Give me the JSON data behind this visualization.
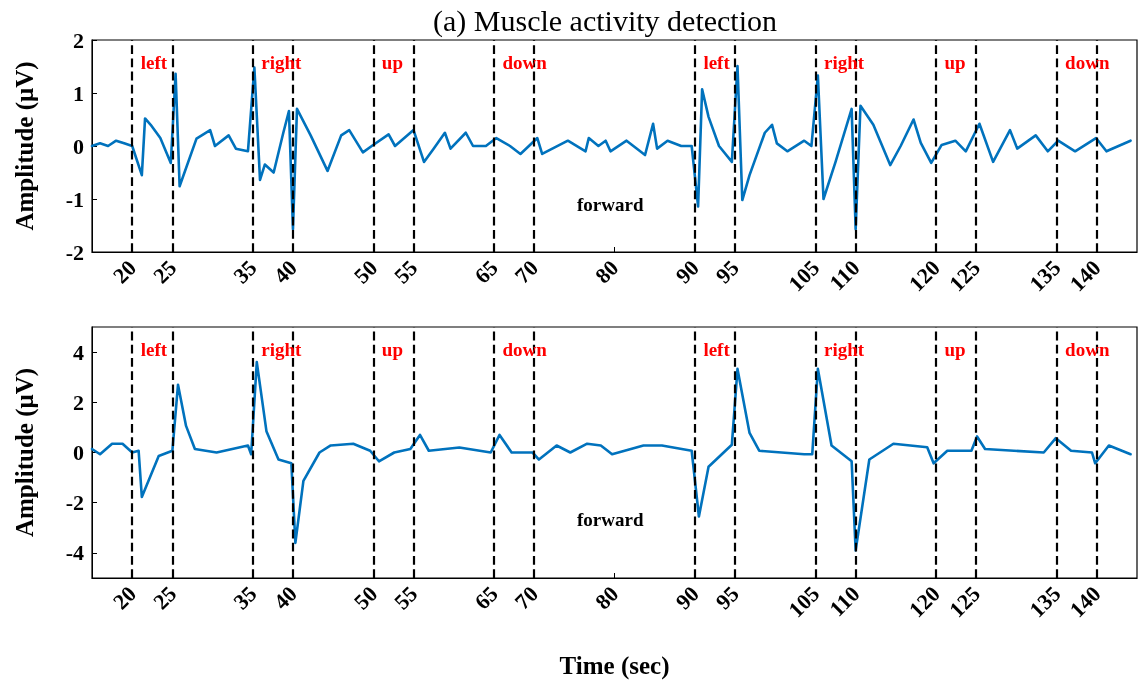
{
  "chart_data": [
    {
      "type": "line",
      "title": "(a) Muscle activity detection",
      "ylabel": "Amplitude (μV)",
      "xlim": [
        15,
        145
      ],
      "xticks": [
        20,
        25,
        35,
        40,
        50,
        55,
        65,
        70,
        80,
        90,
        95,
        105,
        110,
        120,
        125,
        135,
        140
      ],
      "ylim": [
        -2,
        2
      ],
      "yticks": [
        -2,
        -1,
        0,
        1,
        2
      ],
      "grid": false,
      "marker": "none",
      "line_style": "solid",
      "series": [
        {
          "color": "#0072bd",
          "x": [
            15,
            16,
            17,
            18,
            19,
            20,
            21.2,
            21.6,
            22.3,
            23.5,
            24.8,
            25.4,
            25.9,
            28,
            29.7,
            30.3,
            32,
            32.9,
            34.4,
            35.2,
            35.9,
            36.5,
            37.6,
            38.8,
            39.5,
            40,
            40.5,
            42.2,
            44.3,
            46,
            47,
            48.7,
            49.8,
            51.9,
            52.7,
            55,
            56.3,
            57.5,
            58.9,
            59.6,
            61.5,
            62.4,
            64,
            65.3,
            67,
            68.3,
            70.4,
            71,
            74.2,
            76.4,
            76.8,
            78,
            78.9,
            79.5,
            81.5,
            83.8,
            84.8,
            85.3,
            86.6,
            88.3,
            89.6,
            90.4,
            90.9,
            91.7,
            93,
            94.6,
            95.3,
            95.9,
            96.8,
            98.7,
            99.6,
            100.2,
            101.5,
            103.6,
            104.5,
            105.3,
            106,
            107.5,
            109.5,
            110,
            110.6,
            112.2,
            114.3,
            115.6,
            117.2,
            118.1,
            119.4,
            120.7,
            122.4,
            123.7,
            125.4,
            127.1,
            129.2,
            130.1,
            132.4,
            133.9,
            135.2,
            137.3,
            139.9,
            141.2,
            144.2
          ],
          "values": [
            0,
            0.05,
            0,
            0.1,
            0.05,
            0,
            -0.55,
            0.52,
            0.4,
            0.15,
            -0.32,
            1.36,
            -0.76,
            0.14,
            0.3,
            0,
            0.2,
            -0.05,
            -0.1,
            1.48,
            -0.64,
            -0.35,
            -0.5,
            0.25,
            0.66,
            -1.57,
            0.7,
            0.2,
            -0.47,
            0.2,
            0.3,
            -0.12,
            0,
            0.22,
            0,
            0.3,
            -0.3,
            -0.05,
            0.25,
            -0.05,
            0.25,
            0,
            0,
            0.15,
            0,
            -0.15,
            0.15,
            -0.15,
            0.1,
            -0.1,
            0.15,
            0,
            0.1,
            -0.1,
            0.1,
            -0.17,
            0.42,
            -0.05,
            0.1,
            0,
            0,
            -1.14,
            1.07,
            0.55,
            0,
            -0.3,
            1.51,
            -1.02,
            -0.55,
            0.25,
            0.4,
            0.05,
            -0.1,
            0.1,
            0,
            1.33,
            -1,
            -0.3,
            0.7,
            -1.57,
            0.76,
            0.4,
            -0.36,
            0,
            0.5,
            0.06,
            -0.32,
            0.02,
            0.1,
            -0.1,
            0.42,
            -0.3,
            0.3,
            -0.05,
            0.2,
            -0.1,
            0.1,
            -0.1,
            0.15,
            -0.1,
            0.1
          ]
        }
      ],
      "ref_lines": [
        {
          "axis": "x",
          "value": 20,
          "color": "#000000",
          "line_style": "dashed",
          "label": "left"
        },
        {
          "axis": "x",
          "value": 25,
          "color": "#000000",
          "line_style": "dashed"
        },
        {
          "axis": "x",
          "value": 35,
          "color": "#000000",
          "line_style": "dashed",
          "label": "right"
        },
        {
          "axis": "x",
          "value": 40,
          "color": "#000000",
          "line_style": "dashed"
        },
        {
          "axis": "x",
          "value": 50,
          "color": "#000000",
          "line_style": "dashed",
          "label": "up"
        },
        {
          "axis": "x",
          "value": 55,
          "color": "#000000",
          "line_style": "dashed"
        },
        {
          "axis": "x",
          "value": 65,
          "color": "#000000",
          "line_style": "dashed",
          "label": "down"
        },
        {
          "axis": "x",
          "value": 70,
          "color": "#000000",
          "line_style": "dashed"
        },
        {
          "axis": "x",
          "value": 90,
          "color": "#000000",
          "line_style": "dashed",
          "label": "left"
        },
        {
          "axis": "x",
          "value": 95,
          "color": "#000000",
          "line_style": "dashed"
        },
        {
          "axis": "x",
          "value": 105,
          "color": "#000000",
          "line_style": "dashed",
          "label": "right"
        },
        {
          "axis": "x",
          "value": 110,
          "color": "#000000",
          "line_style": "dashed"
        },
        {
          "axis": "x",
          "value": 120,
          "color": "#000000",
          "line_style": "dashed",
          "label": "up"
        },
        {
          "axis": "x",
          "value": 125,
          "color": "#000000",
          "line_style": "dashed"
        },
        {
          "axis": "x",
          "value": 135,
          "color": "#000000",
          "line_style": "dashed",
          "label": "down"
        },
        {
          "axis": "x",
          "value": 140,
          "color": "#000000",
          "line_style": "dashed"
        }
      ],
      "annotations": [
        "forward"
      ]
    },
    {
      "type": "line",
      "xlabel": "Time (sec)",
      "ylabel": "Amplitude (μV)",
      "xlim": [
        15,
        145
      ],
      "xticks": [
        20,
        25,
        35,
        40,
        50,
        55,
        65,
        70,
        80,
        90,
        95,
        105,
        110,
        120,
        125,
        135,
        140
      ],
      "ylim": [
        -5,
        5
      ],
      "yticks": [
        -4,
        -2,
        0,
        2,
        4
      ],
      "grid": false,
      "marker": "none",
      "line_style": "solid",
      "series": [
        {
          "color": "#0072bd",
          "x": [
            15,
            16,
            17.5,
            18.8,
            20,
            20.8,
            21.2,
            23.3,
            25,
            25.7,
            26.7,
            27.8,
            30.5,
            34.4,
            34.8,
            35.5,
            36.7,
            38.2,
            39.8,
            40.3,
            41.3,
            43.3,
            44.7,
            47.5,
            49.6,
            50.7,
            52.6,
            54.6,
            55.8,
            56.9,
            60.7,
            64.6,
            65.7,
            67.2,
            69.8,
            70.6,
            72.8,
            74.5,
            76.6,
            78.3,
            79.7,
            83.6,
            85.9,
            89.6,
            90.5,
            91.7,
            94.6,
            95.3,
            96.8,
            98,
            103.6,
            104.6,
            105.3,
            107,
            109.5,
            110,
            111.7,
            114.7,
            118.9,
            119.7,
            121.4,
            124.4,
            125.1,
            126.1,
            133.4,
            134.9,
            136.8,
            139.4,
            139.8,
            141.5,
            144.2
          ],
          "values": [
            0.14,
            -0.07,
            0.35,
            0.35,
            0,
            0.07,
            -1.77,
            -0.14,
            0.07,
            2.7,
            1.06,
            0.14,
            0,
            0.28,
            -0.07,
            3.6,
            0.85,
            -0.28,
            -0.43,
            -3.6,
            -1.13,
            0,
            0.28,
            0.35,
            0.07,
            -0.35,
            0,
            0.14,
            0.7,
            0.07,
            0.2,
            0,
            0.7,
            0,
            0,
            -0.28,
            0.28,
            0,
            0.35,
            0.28,
            -0.07,
            0.28,
            0.28,
            0.07,
            -2.55,
            -0.57,
            0.31,
            3.33,
            0.78,
            0.07,
            -0.07,
            -0.07,
            3.33,
            0.28,
            -0.35,
            -3.9,
            -0.28,
            0.35,
            0.21,
            -0.43,
            0.07,
            0.07,
            0.64,
            0.14,
            0,
            0.57,
            0.07,
            0,
            -0.43,
            0.28,
            -0.07
          ]
        }
      ],
      "ref_lines": [
        {
          "axis": "x",
          "value": 20,
          "color": "#000000",
          "line_style": "dashed",
          "label": "left"
        },
        {
          "axis": "x",
          "value": 25,
          "color": "#000000",
          "line_style": "dashed"
        },
        {
          "axis": "x",
          "value": 35,
          "color": "#000000",
          "line_style": "dashed",
          "label": "right"
        },
        {
          "axis": "x",
          "value": 40,
          "color": "#000000",
          "line_style": "dashed"
        },
        {
          "axis": "x",
          "value": 50,
          "color": "#000000",
          "line_style": "dashed",
          "label": "up"
        },
        {
          "axis": "x",
          "value": 55,
          "color": "#000000",
          "line_style": "dashed"
        },
        {
          "axis": "x",
          "value": 65,
          "color": "#000000",
          "line_style": "dashed",
          "label": "down"
        },
        {
          "axis": "x",
          "value": 70,
          "color": "#000000",
          "line_style": "dashed"
        },
        {
          "axis": "x",
          "value": 90,
          "color": "#000000",
          "line_style": "dashed",
          "label": "left"
        },
        {
          "axis": "x",
          "value": 95,
          "color": "#000000",
          "line_style": "dashed"
        },
        {
          "axis": "x",
          "value": 105,
          "color": "#000000",
          "line_style": "dashed",
          "label": "right"
        },
        {
          "axis": "x",
          "value": 110,
          "color": "#000000",
          "line_style": "dashed"
        },
        {
          "axis": "x",
          "value": 120,
          "color": "#000000",
          "line_style": "dashed",
          "label": "up"
        },
        {
          "axis": "x",
          "value": 125,
          "color": "#000000",
          "line_style": "dashed"
        },
        {
          "axis": "x",
          "value": 135,
          "color": "#000000",
          "line_style": "dashed",
          "label": "down"
        },
        {
          "axis": "x",
          "value": 140,
          "color": "#000000",
          "line_style": "dashed"
        }
      ],
      "annotations": [
        "forward"
      ]
    }
  ]
}
